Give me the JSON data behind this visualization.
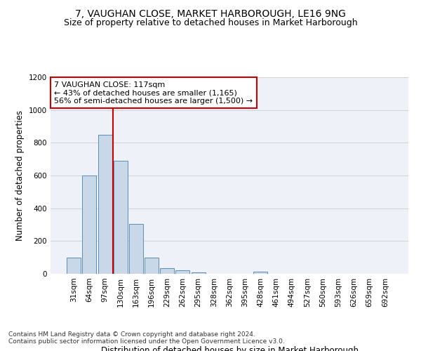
{
  "title1": "7, VAUGHAN CLOSE, MARKET HARBOROUGH, LE16 9NG",
  "title2": "Size of property relative to detached houses in Market Harborough",
  "xlabel": "Distribution of detached houses by size in Market Harborough",
  "ylabel": "Number of detached properties",
  "footnote1": "Contains HM Land Registry data © Crown copyright and database right 2024.",
  "footnote2": "Contains public sector information licensed under the Open Government Licence v3.0.",
  "bar_labels": [
    "31sqm",
    "64sqm",
    "97sqm",
    "130sqm",
    "163sqm",
    "196sqm",
    "229sqm",
    "262sqm",
    "295sqm",
    "328sqm",
    "362sqm",
    "395sqm",
    "428sqm",
    "461sqm",
    "494sqm",
    "527sqm",
    "560sqm",
    "593sqm",
    "626sqm",
    "659sqm",
    "692sqm"
  ],
  "bar_values": [
    100,
    600,
    850,
    690,
    305,
    100,
    33,
    22,
    10,
    0,
    0,
    0,
    12,
    0,
    0,
    0,
    0,
    0,
    0,
    0,
    0
  ],
  "bar_color": "#c8d8e8",
  "bar_edge_color": "#5b8db8",
  "ylim": [
    0,
    1200
  ],
  "yticks": [
    0,
    200,
    400,
    600,
    800,
    1000,
    1200
  ],
  "grid_color": "#cccccc",
  "bg_color": "#eef2f8",
  "annotation_box_text": "7 VAUGHAN CLOSE: 117sqm\n← 43% of detached houses are smaller (1,165)\n56% of semi-detached houses are larger (1,500) →",
  "annotation_box_color": "#ffffff",
  "annotation_box_edge_color": "#cc0000",
  "property_line_color": "#cc0000",
  "title1_fontsize": 10,
  "title2_fontsize": 9,
  "annotation_fontsize": 8,
  "xlabel_fontsize": 8.5,
  "ylabel_fontsize": 8.5,
  "tick_fontsize": 7.5,
  "footnote_fontsize": 6.5
}
